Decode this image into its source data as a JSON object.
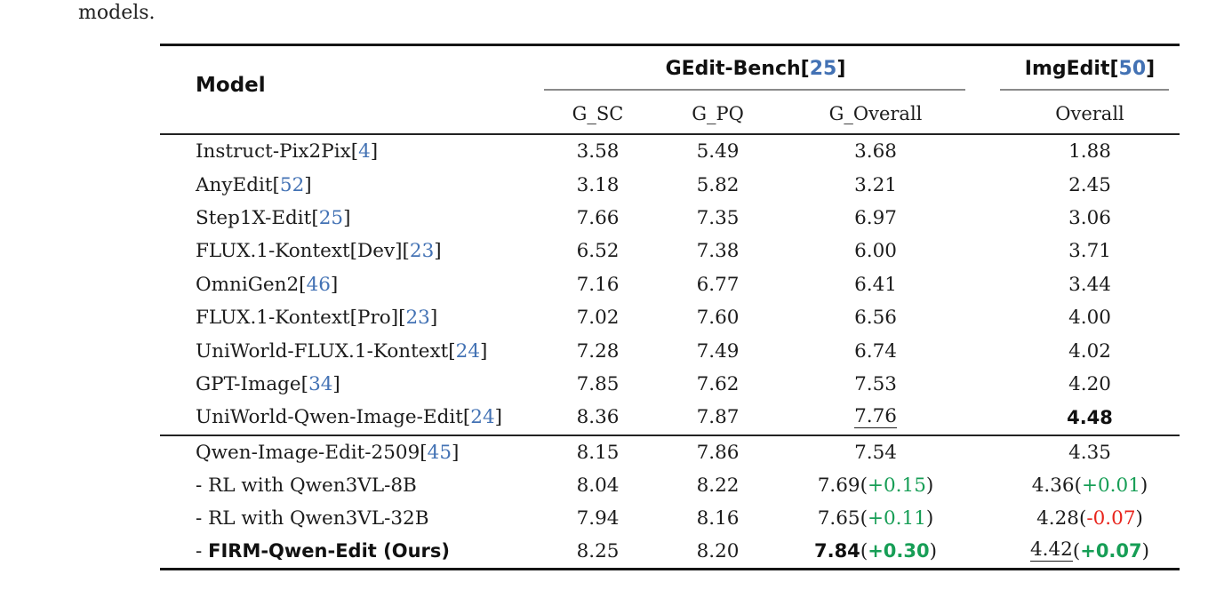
{
  "page": {
    "caption_fragment": "models."
  },
  "colors": {
    "citation_blue": "#4372b4",
    "positive_green": "#179e56",
    "negative_red": "#e8251d"
  },
  "table": {
    "header": {
      "model_label": "Model",
      "groups": [
        {
          "name": "GEdit-Bench",
          "cite": "25"
        },
        {
          "name": "ImgEdit",
          "cite": "50"
        }
      ],
      "subcolumns": [
        "G_SC",
        "G_PQ",
        "G_Overall",
        "Overall"
      ]
    },
    "rows": [
      {
        "section": 1,
        "model": {
          "prefix": "",
          "name": "Instruct-Pix2Pix",
          "cite": "4",
          "bold": false
        },
        "cells": [
          {
            "v": "3.58"
          },
          {
            "v": "5.49"
          },
          {
            "v": "3.68"
          },
          {
            "v": "1.88"
          }
        ]
      },
      {
        "section": 1,
        "model": {
          "prefix": "",
          "name": "AnyEdit",
          "cite": "52",
          "bold": false
        },
        "cells": [
          {
            "v": "3.18"
          },
          {
            "v": "5.82"
          },
          {
            "v": "3.21"
          },
          {
            "v": "2.45"
          }
        ]
      },
      {
        "section": 1,
        "model": {
          "prefix": "",
          "name": "Step1X-Edit",
          "cite": "25",
          "bold": false
        },
        "cells": [
          {
            "v": "7.66"
          },
          {
            "v": "7.35"
          },
          {
            "v": "6.97"
          },
          {
            "v": "3.06"
          }
        ]
      },
      {
        "section": 1,
        "model": {
          "prefix": "",
          "name": "FLUX.1-Kontext[Dev]",
          "cite": "23",
          "bold": false
        },
        "cells": [
          {
            "v": "6.52"
          },
          {
            "v": "7.38"
          },
          {
            "v": "6.00"
          },
          {
            "v": "3.71"
          }
        ]
      },
      {
        "section": 1,
        "model": {
          "prefix": "",
          "name": "OmniGen2",
          "cite": "46",
          "bold": false
        },
        "cells": [
          {
            "v": "7.16"
          },
          {
            "v": "6.77"
          },
          {
            "v": "6.41"
          },
          {
            "v": "3.44"
          }
        ]
      },
      {
        "section": 1,
        "model": {
          "prefix": "",
          "name": "FLUX.1-Kontext[Pro]",
          "cite": "23",
          "bold": false
        },
        "cells": [
          {
            "v": "7.02"
          },
          {
            "v": "7.60"
          },
          {
            "v": "6.56"
          },
          {
            "v": "4.00"
          }
        ]
      },
      {
        "section": 1,
        "model": {
          "prefix": "",
          "name": "UniWorld-FLUX.1-Kontext",
          "cite": "24",
          "bold": false
        },
        "cells": [
          {
            "v": "7.28"
          },
          {
            "v": "7.49"
          },
          {
            "v": "6.74"
          },
          {
            "v": "4.02"
          }
        ]
      },
      {
        "section": 1,
        "model": {
          "prefix": "",
          "name": "GPT-Image",
          "cite": "34",
          "bold": false
        },
        "cells": [
          {
            "v": "7.85"
          },
          {
            "v": "7.62"
          },
          {
            "v": "7.53"
          },
          {
            "v": "4.20"
          }
        ]
      },
      {
        "section": 1,
        "model": {
          "prefix": "",
          "name": "UniWorld-Qwen-Image-Edit",
          "cite": "24",
          "bold": false
        },
        "cells": [
          {
            "v": "8.36"
          },
          {
            "v": "7.87"
          },
          {
            "v": "7.76",
            "underline": true
          },
          {
            "v": "4.48",
            "bold": true
          }
        ]
      },
      {
        "section": 2,
        "model": {
          "prefix": "",
          "name": "Qwen-Image-Edit-2509",
          "cite": "45",
          "bold": false
        },
        "cells": [
          {
            "v": "8.15"
          },
          {
            "v": "7.86"
          },
          {
            "v": "7.54"
          },
          {
            "v": "4.35"
          }
        ]
      },
      {
        "section": 2,
        "model": {
          "prefix": "- ",
          "name": "RL with Qwen3VL-8B",
          "cite": "",
          "bold": false
        },
        "cells": [
          {
            "v": "8.04"
          },
          {
            "v": "8.22"
          },
          {
            "v": "7.69",
            "delta": "+0.15",
            "delta_color": "green"
          },
          {
            "v": "4.36",
            "delta": "+0.01",
            "delta_color": "green"
          }
        ]
      },
      {
        "section": 2,
        "model": {
          "prefix": "- ",
          "name": "RL with Qwen3VL-32B",
          "cite": "",
          "bold": false
        },
        "cells": [
          {
            "v": "7.94"
          },
          {
            "v": "8.16"
          },
          {
            "v": "7.65",
            "delta": "+0.11",
            "delta_color": "green"
          },
          {
            "v": "4.28",
            "delta": "-0.07",
            "delta_color": "red"
          }
        ]
      },
      {
        "section": 2,
        "model": {
          "prefix": "- ",
          "name": "FIRM-Qwen-Edit (Ours)",
          "cite": "",
          "bold": true
        },
        "cells": [
          {
            "v": "8.25"
          },
          {
            "v": "8.20"
          },
          {
            "v": "7.84",
            "bold": true,
            "delta": "+0.30",
            "delta_color": "green",
            "delta_bold": true
          },
          {
            "v": "4.42",
            "underline": true,
            "delta": "+0.07",
            "delta_color": "green",
            "delta_bold": true
          }
        ]
      }
    ]
  }
}
